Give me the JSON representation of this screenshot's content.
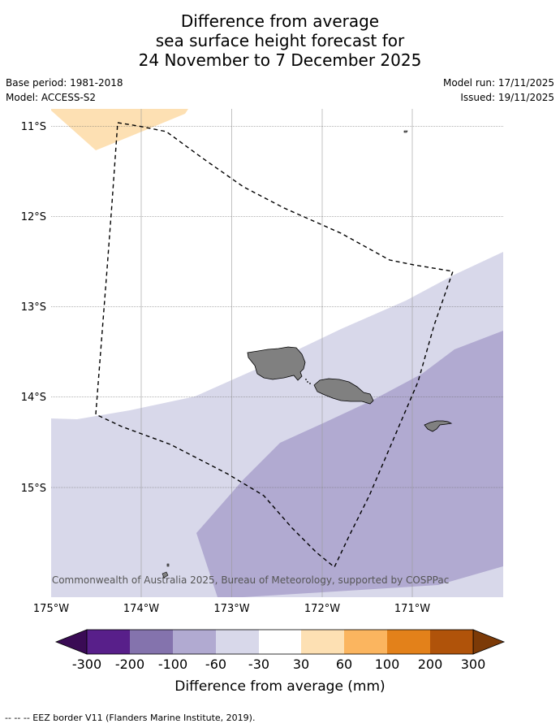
{
  "title": {
    "line1": "Difference from average",
    "line2": "sea surface height forecast for",
    "line3": "24 November to 7 December 2025"
  },
  "meta": {
    "base_period": "Base period: 1981-2018",
    "model": "Model: ACCESS-S2",
    "model_run": "Model run: 17/11/2025",
    "issued": "Issued: 19/11/2025"
  },
  "map": {
    "lon_range": [
      -175,
      -170
    ],
    "lat_range": [
      -16.2,
      -10.8
    ],
    "lat_ticks": [
      {
        "value": -11,
        "label": "11°S"
      },
      {
        "value": -12,
        "label": "12°S"
      },
      {
        "value": -13,
        "label": "13°S"
      },
      {
        "value": -14,
        "label": "14°S"
      },
      {
        "value": -15,
        "label": "15°S"
      }
    ],
    "lon_ticks": [
      {
        "value": -175,
        "label": "175°W"
      },
      {
        "value": -174,
        "label": "174°W"
      },
      {
        "value": -173,
        "label": "173°W"
      },
      {
        "value": -172,
        "label": "172°W"
      },
      {
        "value": -171,
        "label": "171°W"
      }
    ],
    "copyright": "© Commonwealth of Australia 2025, Bureau of Meteorology, supported by COSPPac",
    "colors": {
      "land": "#808080",
      "band_30_60": "#fde0b3",
      "band_neg30_neg60": "#d8d8ea",
      "band_neg60_neg100": "#b1aad1",
      "eez": "#000000"
    }
  },
  "colorbar": {
    "label": "Difference from average (mm)",
    "ticks": [
      "-300",
      "-200",
      "-100",
      "-60",
      "-30",
      "30",
      "60",
      "100",
      "200",
      "300"
    ],
    "colors": [
      "#581f8a",
      "#8473ad",
      "#b1aad1",
      "#d8d8ea",
      "#ffffff",
      "#fde0b3",
      "#fbb55f",
      "#e3811a",
      "#b0530a"
    ],
    "extend_low_color": "#3a0b55",
    "extend_high_color": "#7c3a07"
  },
  "footer": "--  --  -- EEZ border V11 (Flanders Marine Institute, 2019)."
}
